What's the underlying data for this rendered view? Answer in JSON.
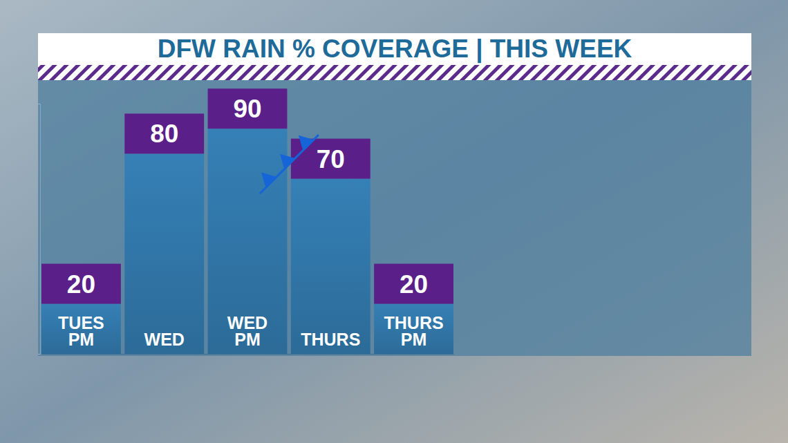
{
  "chart_data": {
    "type": "bar",
    "title": "DFW RAIN % COVERAGE | THIS WEEK",
    "categories": [
      "TUES PM",
      "WED",
      "WED PM",
      "THURS",
      "THURS PM"
    ],
    "values": [
      20,
      80,
      90,
      70,
      20
    ],
    "color": "#2c6b98",
    "ylim": [
      0,
      100
    ],
    "yticks": [
      0,
      100
    ],
    "data_labels": true,
    "tick_labels": "x",
    "grid": false
  }
}
